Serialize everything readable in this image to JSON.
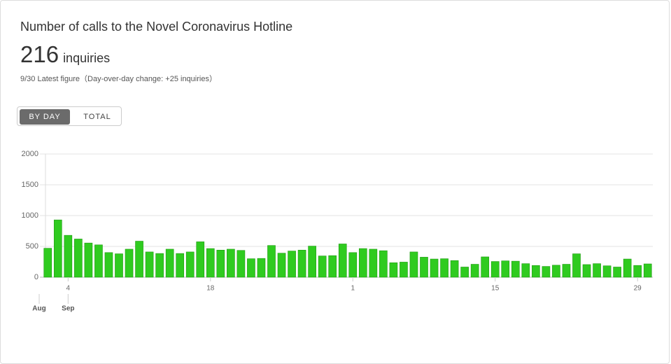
{
  "header": {
    "title": "Number of calls to the Novel Coronavirus Hotline",
    "value": "216",
    "unit": "inquiries",
    "note": "9/30 Latest figure（Day-over-day change: +25 inquiries）"
  },
  "toggle": {
    "options": [
      "BY DAY",
      "TOTAL"
    ]
  },
  "chart_data": {
    "type": "bar",
    "color": "#2fcb1f",
    "categories": [
      null,
      null,
      "4",
      null,
      null,
      null,
      null,
      null,
      null,
      null,
      null,
      null,
      null,
      null,
      null,
      null,
      "18",
      null,
      null,
      null,
      null,
      null,
      null,
      null,
      null,
      null,
      null,
      null,
      null,
      null,
      "1",
      null,
      null,
      null,
      null,
      null,
      null,
      null,
      null,
      null,
      null,
      null,
      null,
      null,
      "15",
      null,
      null,
      null,
      null,
      null,
      null,
      null,
      null,
      null,
      null,
      null,
      null,
      null,
      "29",
      null
    ],
    "months": [
      "Aug",
      "Sep"
    ],
    "values": [
      470,
      930,
      680,
      620,
      555,
      525,
      400,
      380,
      455,
      585,
      410,
      385,
      455,
      385,
      410,
      575,
      465,
      440,
      455,
      435,
      300,
      305,
      515,
      390,
      425,
      440,
      505,
      345,
      350,
      540,
      400,
      465,
      455,
      430,
      235,
      245,
      410,
      325,
      295,
      300,
      270,
      165,
      210,
      330,
      255,
      265,
      260,
      220,
      190,
      175,
      195,
      210,
      380,
      205,
      220,
      185,
      165,
      295,
      191,
      216
    ],
    "ylim": [
      0,
      2000
    ],
    "yticks": [
      0,
      500,
      1000,
      1500,
      2000
    ],
    "grid": true
  }
}
